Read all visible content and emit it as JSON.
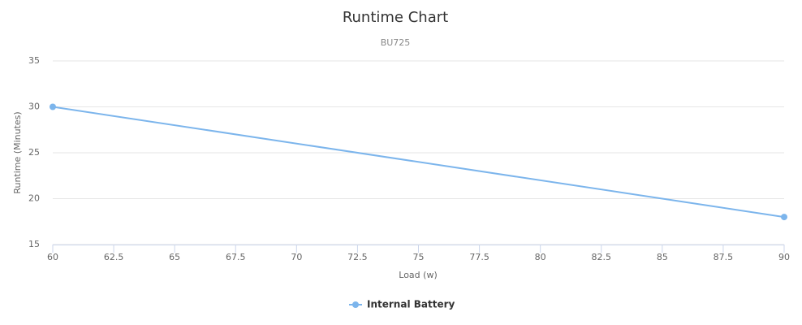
{
  "chart_data": {
    "type": "line",
    "title": "Runtime Chart",
    "subtitle": "BU725",
    "x_label": "Load (w)",
    "y_label": "Runtime (Minutes)",
    "x": [
      60,
      90
    ],
    "series": [
      {
        "name": "Internal Battery",
        "color": "#7cb5ec",
        "values": [
          30,
          18
        ]
      }
    ],
    "xlim": [
      60,
      90
    ],
    "xticks": [
      60,
      62.5,
      65,
      67.5,
      70,
      72.5,
      75,
      77.5,
      80,
      82.5,
      85,
      87.5,
      90
    ],
    "ylim": [
      15,
      35
    ],
    "yticks": [
      15,
      20,
      25,
      30,
      35
    ],
    "grid": true
  }
}
